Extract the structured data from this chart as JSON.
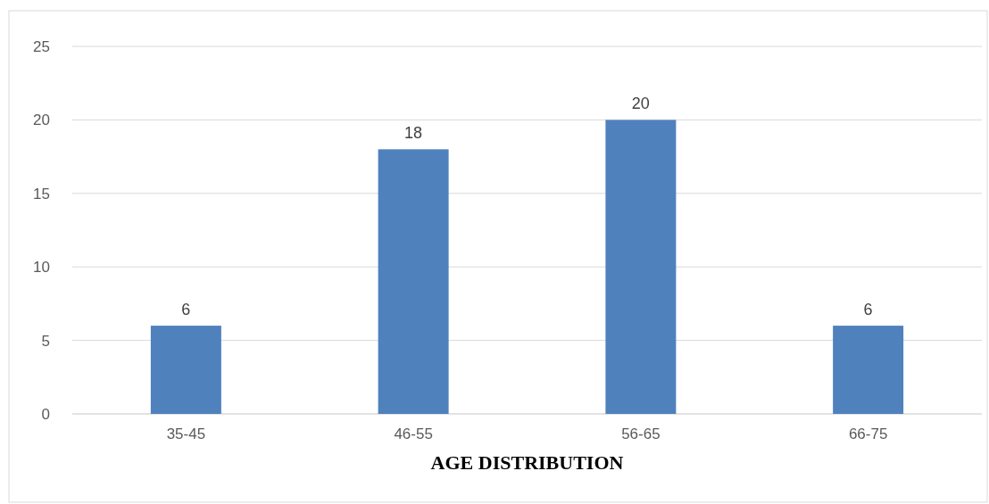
{
  "chart_data": {
    "type": "bar",
    "xlabel": "AGE DISTRIBUTION",
    "categories": [
      "35-45",
      "46-55",
      "56-65",
      "66-75"
    ],
    "values": [
      6,
      18,
      20,
      6
    ],
    "color": "#4f81bd",
    "ylim": [
      0,
      25
    ],
    "yticks": [
      0,
      5,
      10,
      15,
      20,
      25
    ],
    "grid": "y",
    "data_labels": true
  }
}
